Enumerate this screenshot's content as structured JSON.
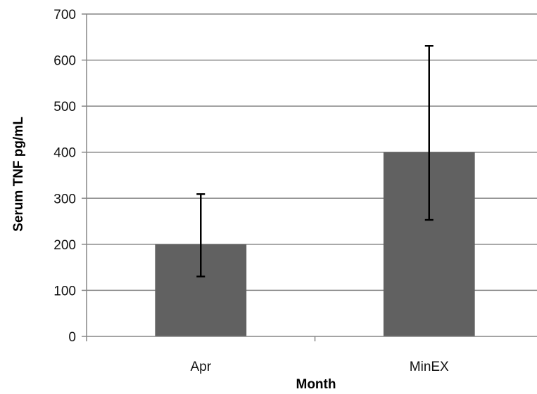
{
  "chart_data": {
    "type": "bar",
    "categories": [
      "Apr",
      "MinEX"
    ],
    "series": [
      {
        "values": [
          200,
          400
        ],
        "error_low": [
          130,
          253
        ],
        "error_high": [
          309,
          631
        ],
        "color": "#616161"
      }
    ],
    "xlabel": "Month",
    "ylabel": "Serum TNF pg/mL",
    "ylim": [
      0,
      700
    ],
    "yticks": [
      0,
      100,
      200,
      300,
      400,
      500,
      600,
      700
    ],
    "grid": true,
    "legend": "none"
  },
  "colors": {
    "bar": "#616161",
    "gridline": "#868686",
    "axis": "#868686",
    "error_bar": "#000000"
  }
}
